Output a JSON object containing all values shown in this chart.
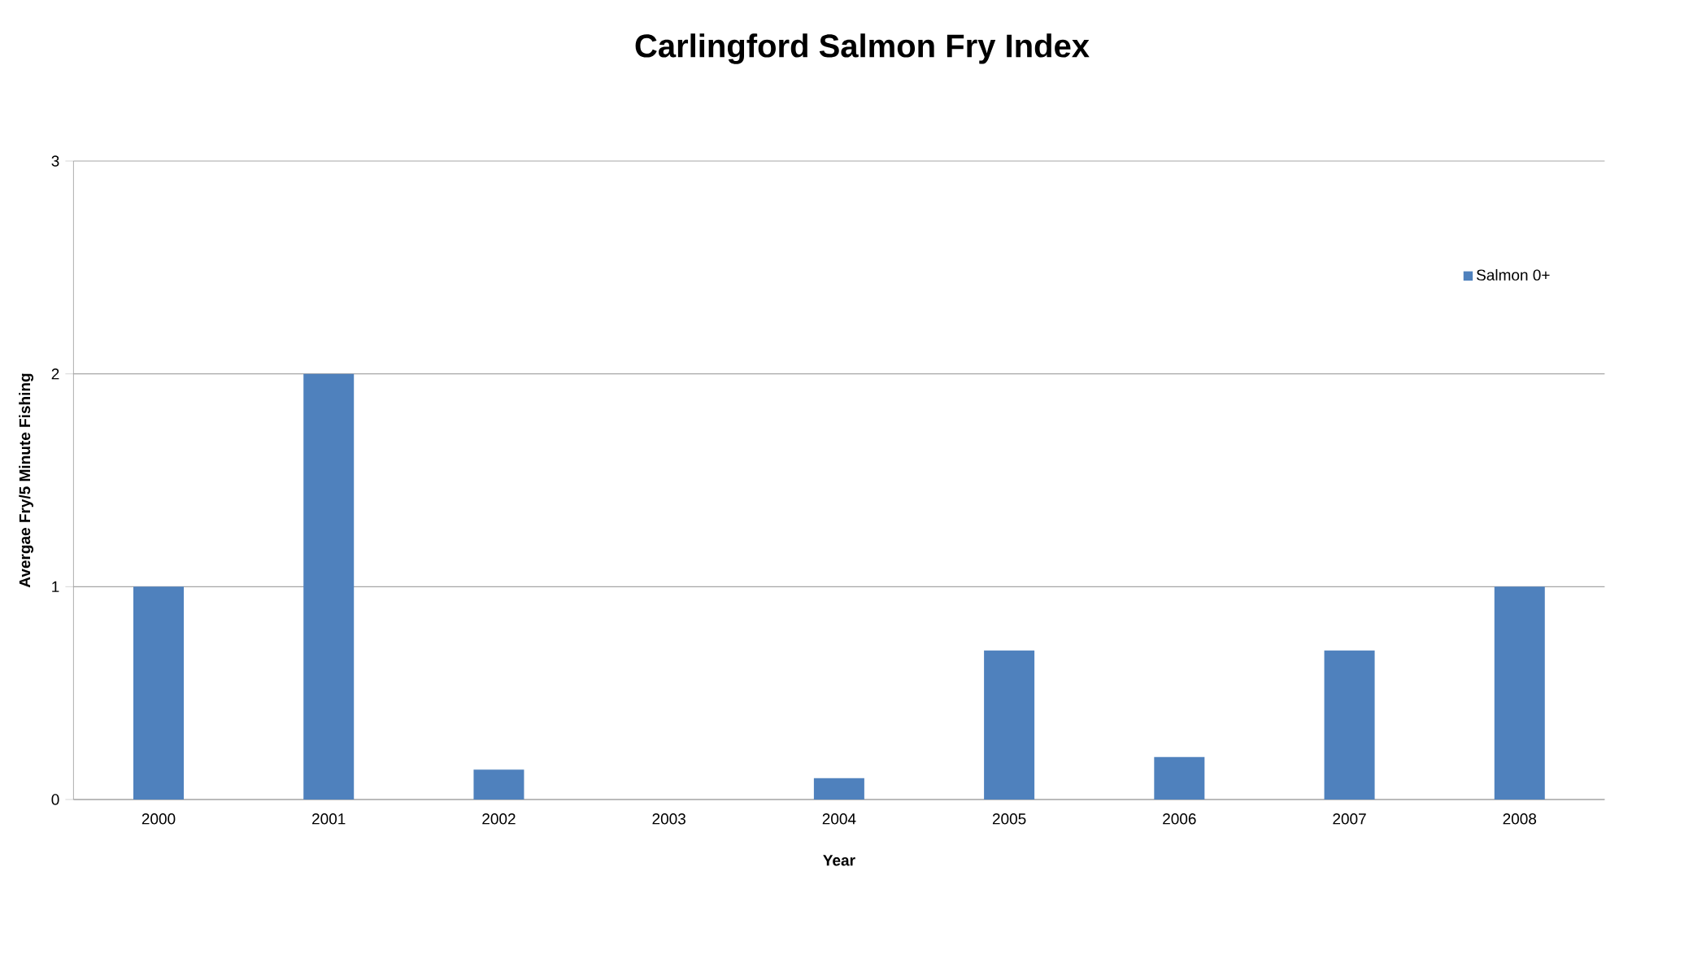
{
  "chart_data": {
    "type": "bar",
    "title": "Carlingford Salmon Fry Index",
    "xlabel": "Year",
    "ylabel": "Avergae Fry/5 Minute Fishing",
    "categories": [
      "2000",
      "2001",
      "2002",
      "2003",
      "2004",
      "2005",
      "2006",
      "2007",
      "2008"
    ],
    "series": [
      {
        "name": "Salmon 0+",
        "color": "#4f81bd",
        "values": [
          1,
          2,
          0.14,
          0,
          0.1,
          0.7,
          0.2,
          0.7,
          1
        ]
      }
    ],
    "ylim": [
      0,
      3
    ],
    "yticks": [
      0,
      1,
      2,
      3
    ],
    "grid": "y",
    "legend": "top right"
  }
}
